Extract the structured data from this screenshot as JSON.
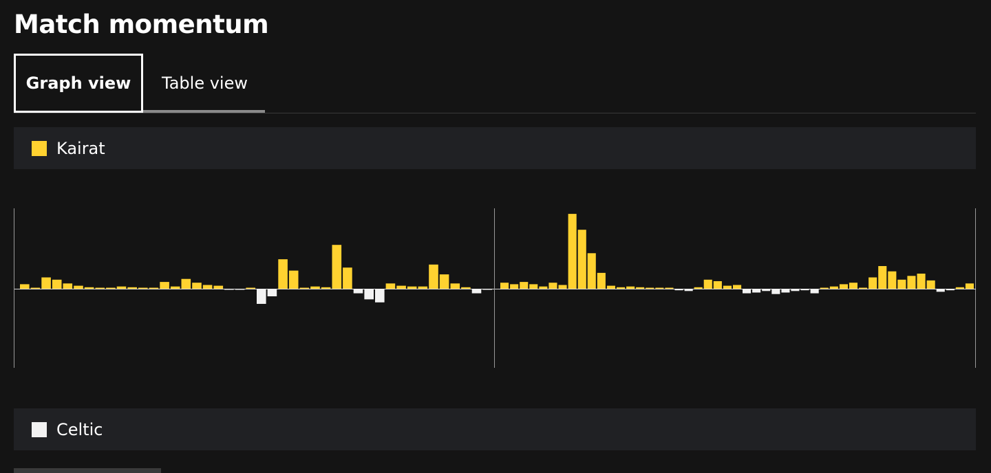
{
  "page": {
    "title": "Match momentum"
  },
  "tabs": [
    {
      "label": "Graph view",
      "selected": true
    },
    {
      "label": "Table view",
      "selected": false
    }
  ],
  "legend": [
    {
      "team": "Kairat",
      "color": "#ffd230"
    },
    {
      "team": "Celtic",
      "color": "#f2f2f2"
    }
  ],
  "chart_data": {
    "type": "bar",
    "ylim": [
      -1,
      1
    ],
    "grid": false,
    "series": [
      {
        "name": "Kairat",
        "color": "#ffd230"
      },
      {
        "name": "Celtic",
        "color": "#f2f2f2"
      }
    ],
    "periods": [
      {
        "values": [
          0.06,
          0.01,
          0.15,
          0.12,
          0.07,
          0.04,
          0.02,
          0.01,
          0.01,
          0.03,
          0.02,
          0.01,
          0.01,
          0.09,
          0.03,
          0.13,
          0.08,
          0.05,
          0.04,
          -0.01,
          -0.01,
          0.01,
          -0.2,
          -0.1,
          0.39,
          0.24,
          0.01,
          0.03,
          0.02,
          0.58,
          0.28,
          -0.06,
          -0.14,
          -0.18,
          0.07,
          0.04,
          0.03,
          0.03,
          0.32,
          0.19,
          0.07,
          0.02,
          -0.06,
          -0.01
        ]
      },
      {
        "values": [
          0.08,
          0.06,
          0.09,
          0.06,
          0.03,
          0.08,
          0.05,
          0.99,
          0.78,
          0.47,
          0.21,
          0.04,
          0.02,
          0.03,
          0.02,
          0.01,
          0.01,
          0.01,
          -0.02,
          -0.03,
          0.02,
          0.12,
          0.1,
          0.04,
          0.05,
          -0.06,
          -0.05,
          -0.03,
          -0.07,
          -0.05,
          -0.03,
          -0.02,
          -0.06,
          0.01,
          0.03,
          0.06,
          0.08,
          0.01,
          0.15,
          0.3,
          0.23,
          0.12,
          0.17,
          0.2,
          0.11,
          -0.04,
          -0.02,
          0.02,
          0.07
        ]
      }
    ]
  }
}
